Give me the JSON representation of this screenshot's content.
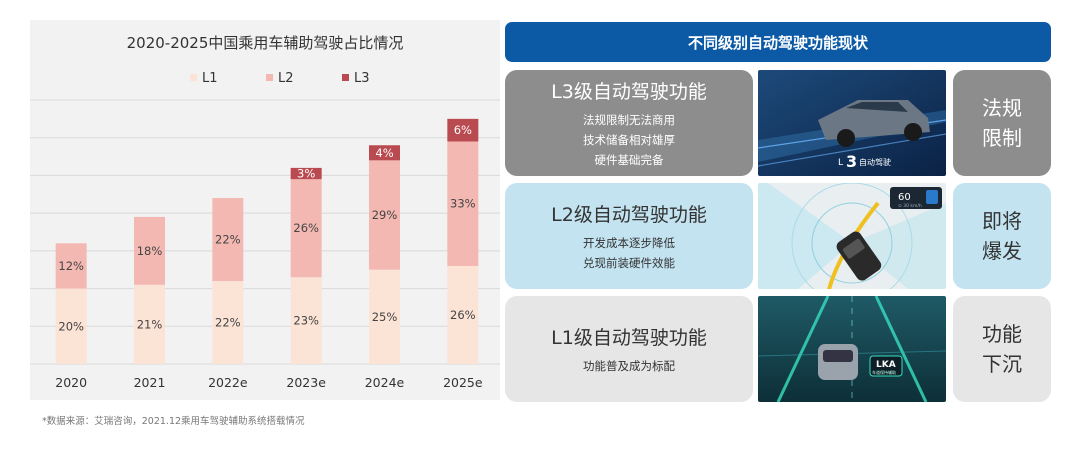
{
  "chart_data": {
    "type": "bar",
    "stacked": true,
    "title": "2020-2025中国乘用车辅助驾驶占比情况",
    "categories": [
      "2020",
      "2021",
      "2022e",
      "2023e",
      "2024e",
      "2025e"
    ],
    "series": [
      {
        "name": "L1",
        "color": "#fbe3d6",
        "values": [
          20,
          21,
          22,
          23,
          25,
          26
        ],
        "labels": [
          "20%",
          "21%",
          "22%",
          "23%",
          "25%",
          "26%"
        ]
      },
      {
        "name": "L2",
        "color": "#f4b8b3",
        "values": [
          12,
          18,
          22,
          26,
          29,
          33
        ],
        "labels": [
          "12%",
          "18%",
          "22%",
          "26%",
          "29%",
          "33%"
        ]
      },
      {
        "name": "L3",
        "color": "#b94a4f",
        "values": [
          0,
          0,
          0,
          3,
          4,
          6
        ],
        "labels": [
          "",
          "",
          "",
          "3%",
          "4%",
          "6%"
        ]
      }
    ],
    "ylim": [
      0,
      70
    ],
    "gridlines": [
      0,
      10,
      20,
      30,
      40,
      50,
      60,
      70
    ],
    "grid": true,
    "legend": "top-center",
    "xlabel": "",
    "ylabel": ""
  },
  "source_note": "*数据来源：艾瑞咨询，2021.12乘用车驾驶辅助系统搭载情况",
  "right": {
    "header": "不同级别自动驾驶功能现状",
    "rows": [
      {
        "title": "L3级自动驾驶功能",
        "lines": [
          "法规限制无法商用",
          "技术储备相对雄厚",
          "硬件基础完备"
        ],
        "status": [
          "法规",
          "限制"
        ],
        "photo": "car-highway-l3"
      },
      {
        "title": "L2级自动驾驶功能",
        "lines": [
          "开发成本逐步降低",
          "兑现前装硬件效能"
        ],
        "status": [
          "即将",
          "爆发"
        ],
        "photo": "car-sensor-radar"
      },
      {
        "title": "L1级自动驾驶功能",
        "lines": [
          "功能普及成为标配"
        ],
        "status": [
          "功能",
          "下沉"
        ],
        "photo": "car-lane-keep"
      }
    ],
    "photo_text": {
      "l3_badge_num": "3",
      "l3_badge_text": "自动驾驶",
      "l2_speed": "60",
      "l2_speed_sub": "⊙ 30 km/h",
      "l1_badge": "LKA",
      "l1_badge_sub": "车道保持辅助"
    }
  },
  "colors": {
    "header_blue": "#0c5aa6",
    "l3_gray": "#8d8d8d",
    "l2_blue": "#c3e3f1",
    "l1_gray": "#e6e6e6"
  }
}
